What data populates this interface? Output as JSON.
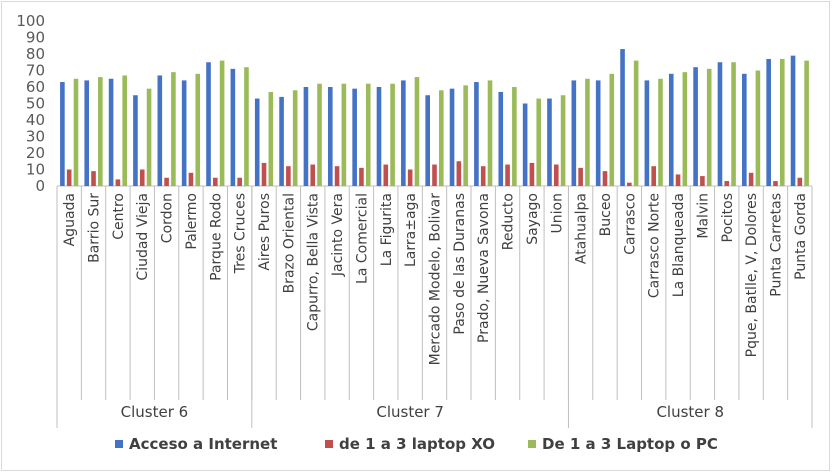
{
  "chart_data": {
    "type": "bar",
    "ylim": [
      0,
      100
    ],
    "yticks": [
      0,
      10,
      20,
      30,
      40,
      50,
      60,
      70,
      80,
      90,
      100
    ],
    "grid": false,
    "legend_position": "bottom",
    "groups": [
      {
        "label": "Cluster 6",
        "categories": [
          "Aguada",
          "Barrio Sur",
          "Centro",
          "Ciudad Vieja",
          "Cordon",
          "Palermo",
          "Parque Rodo",
          "Tres Cruces"
        ]
      },
      {
        "label": "Cluster 7",
        "categories": [
          "Aires Puros",
          "Brazo Oriental",
          "Capurro, Bella Vista",
          "Jacinto Vera",
          "La Comercial",
          "La Figurita",
          "Larra±aga",
          "Mercado Modelo, Bolivar",
          "Paso de las Duranas",
          "Prado, Nueva Savona",
          "Reducto",
          "Sayago",
          "Union"
        ]
      },
      {
        "label": "Cluster 8",
        "categories": [
          "Atahualpa",
          "Buceo",
          "Carrasco",
          "Carrasco Norte",
          "La Blanqueada",
          "Malvin",
          "Pocitos",
          "Pque, Batlle, V, Dolores",
          "Punta Carretas",
          "Punta Gorda"
        ]
      }
    ],
    "series": [
      {
        "name": "Acceso a Internet",
        "color": "#4472c4",
        "values": [
          63,
          64,
          65,
          55,
          67,
          64,
          75,
          71,
          53,
          54,
          60,
          60,
          59,
          60,
          64,
          55,
          59,
          63,
          57,
          50,
          53,
          64,
          64,
          83,
          64,
          68,
          72,
          75,
          68,
          77,
          79
        ]
      },
      {
        "name": "de 1 a 3 laptop XO",
        "color": "#c0504d",
        "values": [
          10,
          9,
          4,
          10,
          5,
          8,
          5,
          5,
          14,
          12,
          13,
          12,
          11,
          13,
          10,
          13,
          15,
          12,
          13,
          14,
          13,
          11,
          9,
          2,
          12,
          7,
          6,
          3,
          8,
          3,
          5
        ]
      },
      {
        "name": "De 1 a 3 Laptop o PC",
        "color": "#9bbb59",
        "values": [
          65,
          66,
          67,
          59,
          69,
          68,
          76,
          72,
          57,
          58,
          62,
          62,
          62,
          62,
          66,
          58,
          61,
          64,
          60,
          53,
          55,
          65,
          68,
          76,
          65,
          69,
          71,
          75,
          70,
          77,
          76
        ]
      }
    ]
  }
}
